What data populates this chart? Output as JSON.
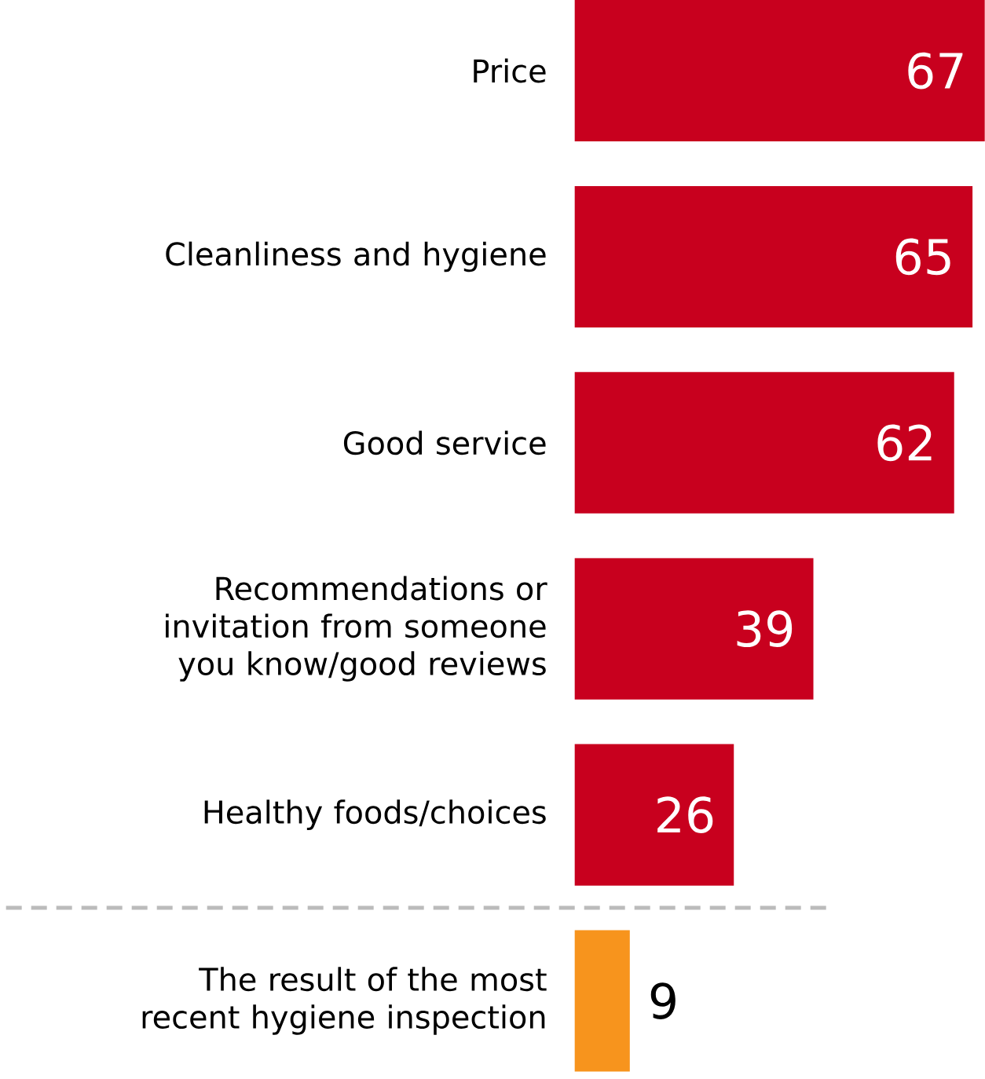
{
  "chart_data": {
    "type": "bar",
    "orientation": "horizontal",
    "categories": [
      "Price",
      "Cleanliness and hygiene",
      "Good service",
      "Recommendations or invitation from someone you know/good reviews",
      "Healthy foods/choices",
      "The result of the most recent hygiene inspection"
    ],
    "values": [
      67,
      65,
      62,
      39,
      26,
      9
    ],
    "colors": [
      "#c8001e",
      "#c8001e",
      "#c8001e",
      "#c8001e",
      "#c8001e",
      "#f7941d"
    ],
    "value_labels": [
      "67",
      "65",
      "62",
      "39",
      "26",
      "9"
    ]
  }
}
